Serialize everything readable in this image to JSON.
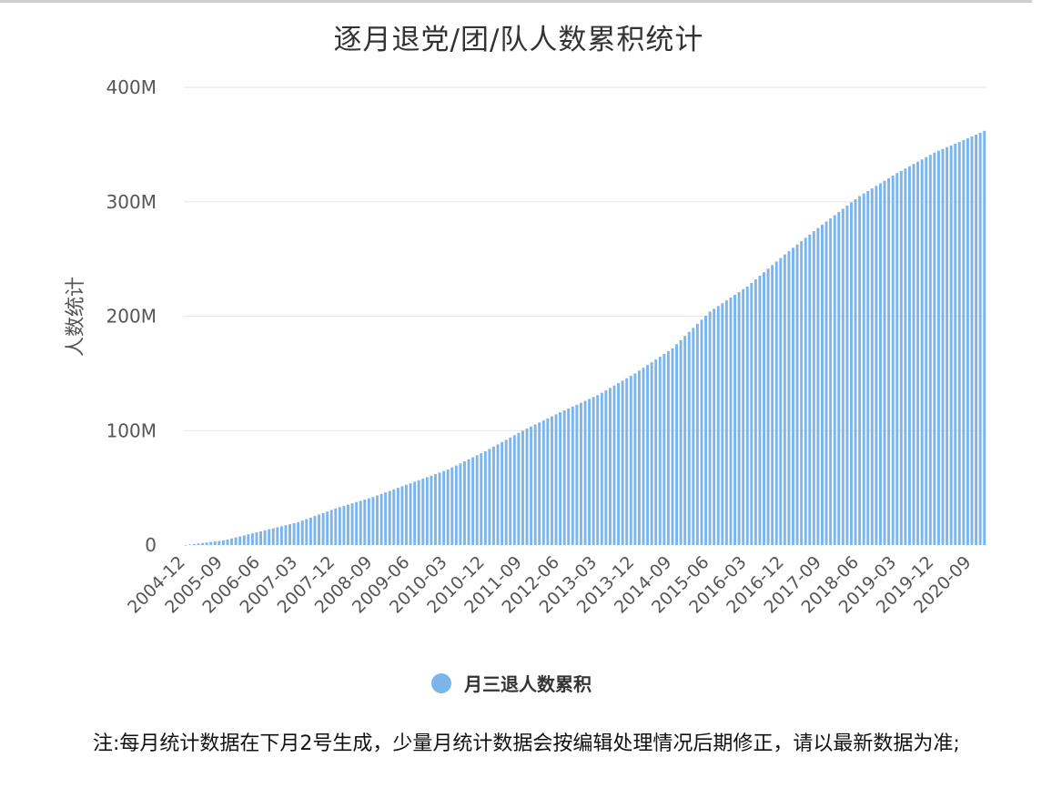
{
  "page": {
    "title": "逐月退党/团/队人数累积统计",
    "note": "注:每月统计数据在下月2号生成，少量月统计数据会按编辑处理情况后期修正，请以最新数据为准;"
  },
  "colors": {
    "bar": "#7cb5ec",
    "grid": "#e6e6e6",
    "axis_text": "#555555"
  },
  "chart_data": {
    "type": "bar",
    "title": "逐月退党/团/队人数累积统计",
    "ylabel": "人数统计",
    "xlabel": "",
    "ylim": [
      0,
      400000000
    ],
    "yticks": [
      {
        "value": 0,
        "label": "0"
      },
      {
        "value": 100000000,
        "label": "100M"
      },
      {
        "value": 200000000,
        "label": "200M"
      },
      {
        "value": 300000000,
        "label": "300M"
      },
      {
        "value": 400000000,
        "label": "400M"
      }
    ],
    "start_month": "2004-12",
    "end_month": "2020-12",
    "xtick_labels": [
      "2004-12",
      "2005-09",
      "2006-06",
      "2007-03",
      "2007-12",
      "2008-09",
      "2009-06",
      "2010-03",
      "2010-12",
      "2011-09",
      "2012-06",
      "2013-03",
      "2013-12",
      "2014-09",
      "2015-06",
      "2016-03",
      "2016-12",
      "2017-09",
      "2018-06",
      "2019-03",
      "2019-12",
      "2020-09"
    ],
    "anchors": [
      {
        "month": "2004-12",
        "value": 50000
      },
      {
        "month": "2005-09",
        "value": 4000000
      },
      {
        "month": "2006-06",
        "value": 12000000
      },
      {
        "month": "2007-03",
        "value": 20000000
      },
      {
        "month": "2007-12",
        "value": 32000000
      },
      {
        "month": "2008-09",
        "value": 42000000
      },
      {
        "month": "2009-06",
        "value": 54000000
      },
      {
        "month": "2010-03",
        "value": 66000000
      },
      {
        "month": "2010-12",
        "value": 82000000
      },
      {
        "month": "2011-09",
        "value": 100000000
      },
      {
        "month": "2012-06",
        "value": 116000000
      },
      {
        "month": "2013-03",
        "value": 131000000
      },
      {
        "month": "2013-12",
        "value": 150000000
      },
      {
        "month": "2014-09",
        "value": 172000000
      },
      {
        "month": "2015-06",
        "value": 204000000
      },
      {
        "month": "2016-03",
        "value": 226000000
      },
      {
        "month": "2016-12",
        "value": 254000000
      },
      {
        "month": "2017-09",
        "value": 280000000
      },
      {
        "month": "2018-06",
        "value": 305000000
      },
      {
        "month": "2019-03",
        "value": 325000000
      },
      {
        "month": "2019-12",
        "value": 343000000
      },
      {
        "month": "2020-09",
        "value": 357000000
      },
      {
        "month": "2020-12",
        "value": 362000000
      }
    ],
    "series": [
      {
        "name": "月三退人数累积"
      }
    ],
    "legend": "bottom-center",
    "grid": true
  }
}
